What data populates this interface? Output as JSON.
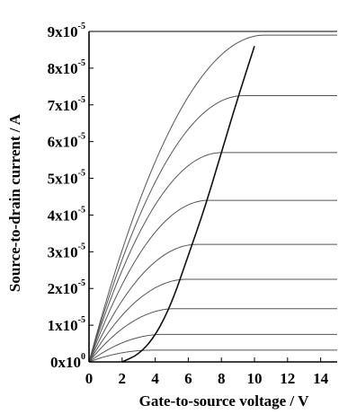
{
  "chart_data": {
    "type": "line",
    "xlabel": "Gate-to-source voltage / V",
    "ylabel": "Source-to-drain current / A",
    "xlim": [
      0,
      15
    ],
    "ylim": [
      0,
      9e-05
    ],
    "grid": false,
    "x_ticks": [
      {
        "value": 0,
        "label": "0"
      },
      {
        "value": 2,
        "label": "2"
      },
      {
        "value": 4,
        "label": "4"
      },
      {
        "value": 6,
        "label": "6"
      },
      {
        "value": 8,
        "label": "8"
      },
      {
        "value": 10,
        "label": "10"
      },
      {
        "value": 12,
        "label": "12"
      },
      {
        "value": 14,
        "label": "14"
      }
    ],
    "y_ticks": [
      {
        "value": 0,
        "mantissa": "0x10",
        "exponent": "0"
      },
      {
        "value": 1e-05,
        "mantissa": "1x10",
        "exponent": "-5"
      },
      {
        "value": 2e-05,
        "mantissa": "2x10",
        "exponent": "-5"
      },
      {
        "value": 3e-05,
        "mantissa": "3x10",
        "exponent": "-5"
      },
      {
        "value": 4e-05,
        "mantissa": "4x10",
        "exponent": "-5"
      },
      {
        "value": 5e-05,
        "mantissa": "5x10",
        "exponent": "-5"
      },
      {
        "value": 6e-05,
        "mantissa": "6x10",
        "exponent": "-5"
      },
      {
        "value": 7e-05,
        "mantissa": "7x10",
        "exponent": "-5"
      },
      {
        "value": 8e-05,
        "mantissa": "8x10",
        "exponent": "-5"
      },
      {
        "value": 9e-05,
        "mantissa": "9x10",
        "exponent": "-5"
      }
    ],
    "series": [
      {
        "saturation_x": 3.8,
        "saturation_y": 3.2e-06,
        "x_end": 15
      },
      {
        "saturation_x": 4.5,
        "saturation_y": 7.5e-06,
        "x_end": 15
      },
      {
        "saturation_x": 5.2,
        "saturation_y": 1.45e-05,
        "x_end": 15
      },
      {
        "saturation_x": 5.9,
        "saturation_y": 2.25e-05,
        "x_end": 15
      },
      {
        "saturation_x": 6.5,
        "saturation_y": 3.2e-05,
        "x_end": 15
      },
      {
        "saturation_x": 7.2,
        "saturation_y": 4.4e-05,
        "x_end": 15
      },
      {
        "saturation_x": 8.0,
        "saturation_y": 5.7e-05,
        "x_end": 15
      },
      {
        "saturation_x": 9.3,
        "saturation_y": 7.25e-05,
        "x_end": 15
      },
      {
        "saturation_x": 10.6,
        "saturation_y": 8.9e-05,
        "x_end": 15
      }
    ],
    "locus": {
      "x": [
        2.0,
        3.0,
        4.0,
        5.0,
        6.0,
        7.0,
        8.0,
        9.0,
        10.0
      ],
      "y": [
        0,
        2e-06,
        7e-06,
        1.6e-05,
        2.9e-05,
        4.2e-05,
        5.7e-05,
        7.2e-05,
        8.6e-05
      ]
    },
    "colors": {
      "curves": "#555555",
      "locus": "#111111",
      "axes": "#000000"
    }
  }
}
